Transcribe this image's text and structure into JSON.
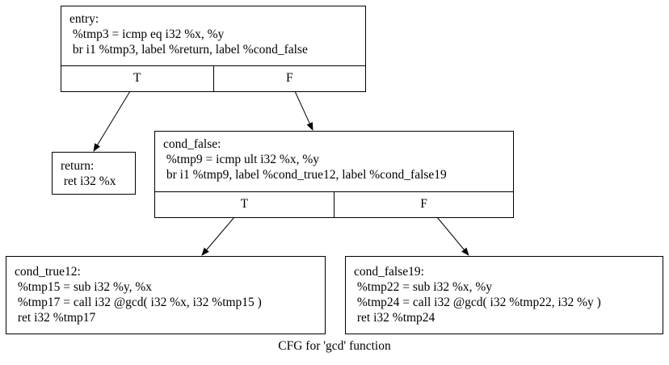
{
  "caption": "CFG for 'gcd' function",
  "nodes": {
    "entry": {
      "lines": [
        "entry:",
        " %tmp3 = icmp eq i32 %x, %y",
        " br i1 %tmp3, label %return, label %cond_false"
      ],
      "ports": [
        "T",
        "F"
      ]
    },
    "return": {
      "lines": [
        "return:",
        " ret i32 %x"
      ]
    },
    "cond_false": {
      "lines": [
        "cond_false:",
        " %tmp9 = icmp ult i32 %x, %y",
        " br i1 %tmp9, label %cond_true12, label %cond_false19"
      ],
      "ports": [
        "T",
        "F"
      ]
    },
    "cond_true12": {
      "lines": [
        "cond_true12:",
        " %tmp15 = sub i32 %y, %x",
        " %tmp17 = call i32 @gcd( i32 %x, i32 %tmp15 )",
        " ret i32 %tmp17"
      ]
    },
    "cond_false19": {
      "lines": [
        "cond_false19:",
        " %tmp22 = sub i32 %x, %y",
        " %tmp24 = call i32 @gcd( i32 %tmp22, i32 %y )",
        " ret i32 %tmp24"
      ]
    }
  },
  "edges": [
    {
      "from": "entry",
      "port": "T",
      "to": "return"
    },
    {
      "from": "entry",
      "port": "F",
      "to": "cond_false"
    },
    {
      "from": "cond_false",
      "port": "T",
      "to": "cond_true12"
    },
    {
      "from": "cond_false",
      "port": "F",
      "to": "cond_false19"
    }
  ]
}
